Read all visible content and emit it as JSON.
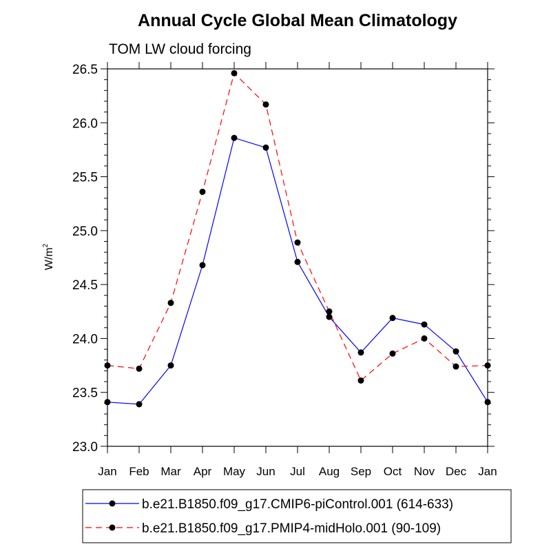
{
  "chart_data": {
    "type": "line",
    "title": "Annual Cycle Global Mean Climatology",
    "subtitle": "TOM LW cloud forcing",
    "xlabel": "",
    "ylabel": "W/m",
    "ylabel_superscript": "2",
    "categories": [
      "Jan",
      "Feb",
      "Mar",
      "Apr",
      "May",
      "Jun",
      "Jul",
      "Aug",
      "Sep",
      "Oct",
      "Nov",
      "Dec",
      "Jan"
    ],
    "ylim": [
      23.0,
      26.5
    ],
    "yticks": [
      "23.0",
      "23.5",
      "24.0",
      "24.5",
      "25.0",
      "25.5",
      "26.0",
      "26.5"
    ],
    "grid": false,
    "legend_position": "bottom",
    "series": [
      {
        "name": "b.e21.B1850.f09_g17.CMIP6-piControl.001 (614-633)",
        "color": "#0000ff",
        "style": "solid",
        "values": [
          23.41,
          23.39,
          23.75,
          24.68,
          25.86,
          25.77,
          24.71,
          24.2,
          23.87,
          24.19,
          24.13,
          23.88,
          23.41
        ]
      },
      {
        "name": "b.e21.B1850.f09_g17.PMIP4-midHolo.001 (90-109)",
        "color": "#ff0000",
        "style": "dashed",
        "values": [
          23.75,
          23.72,
          24.33,
          25.36,
          26.46,
          26.17,
          24.89,
          24.25,
          23.61,
          23.86,
          24.0,
          23.74,
          23.75
        ]
      }
    ]
  }
}
